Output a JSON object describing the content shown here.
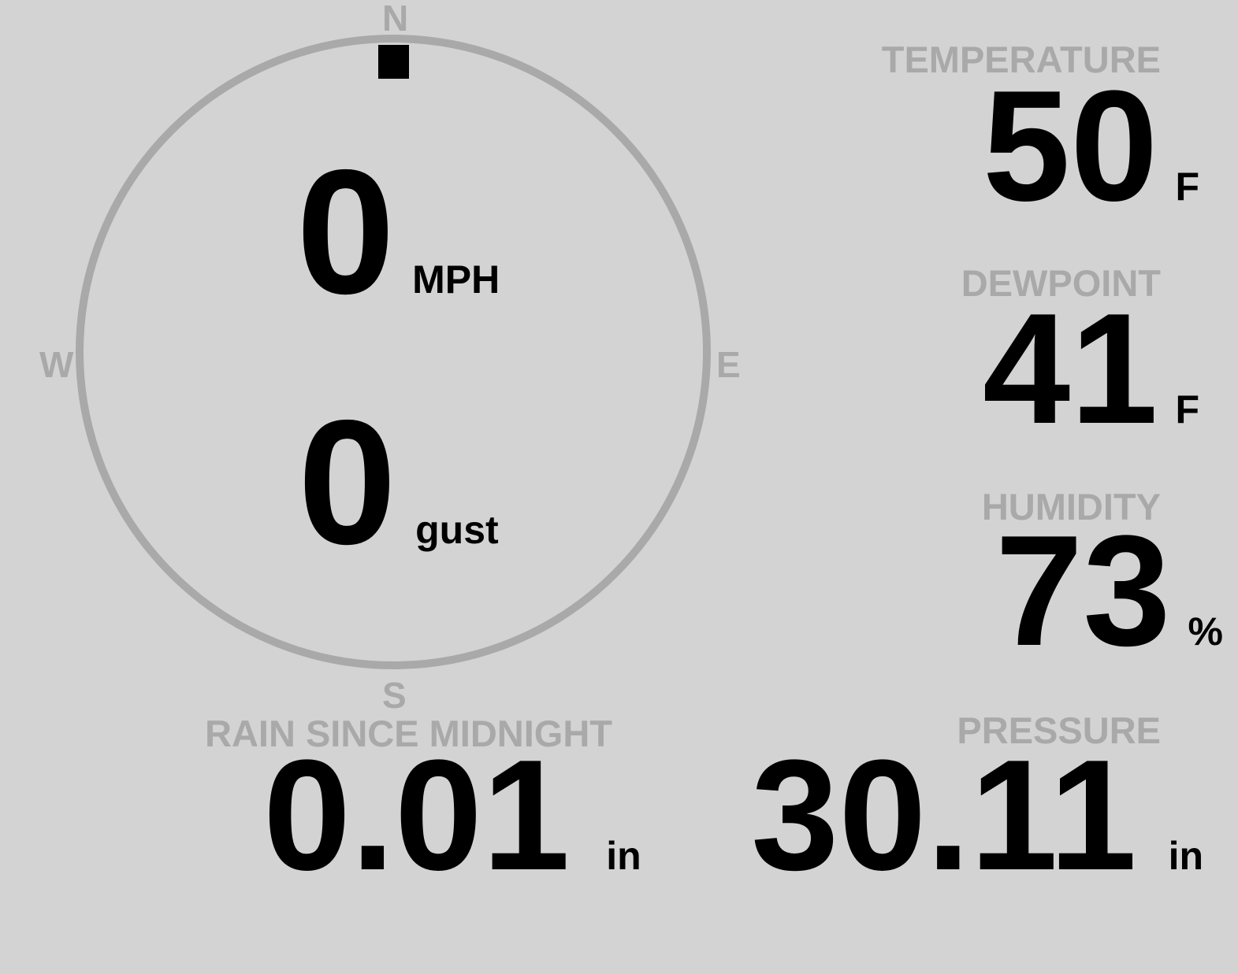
{
  "colors": {
    "background": "#d3d3d3",
    "muted": "#a9a9a9",
    "value": "#000000"
  },
  "wind": {
    "compass": {
      "north": "N",
      "east": "E",
      "south": "S",
      "west": "W"
    },
    "direction_deg": 0,
    "speed": "0",
    "speed_unit": "MPH",
    "gust": "0",
    "gust_unit": "gust"
  },
  "temperature": {
    "label": "TEMPERATURE",
    "value": "50",
    "unit": "F"
  },
  "dewpoint": {
    "label": "DEWPOINT",
    "value": "41",
    "unit": "F"
  },
  "humidity": {
    "label": "HUMIDITY",
    "value": "73",
    "unit": "%"
  },
  "rain": {
    "label": "RAIN SINCE MIDNIGHT",
    "value": "0.01",
    "unit": "in"
  },
  "pressure": {
    "label": "PRESSURE",
    "value": "30.11",
    "unit": "in"
  }
}
